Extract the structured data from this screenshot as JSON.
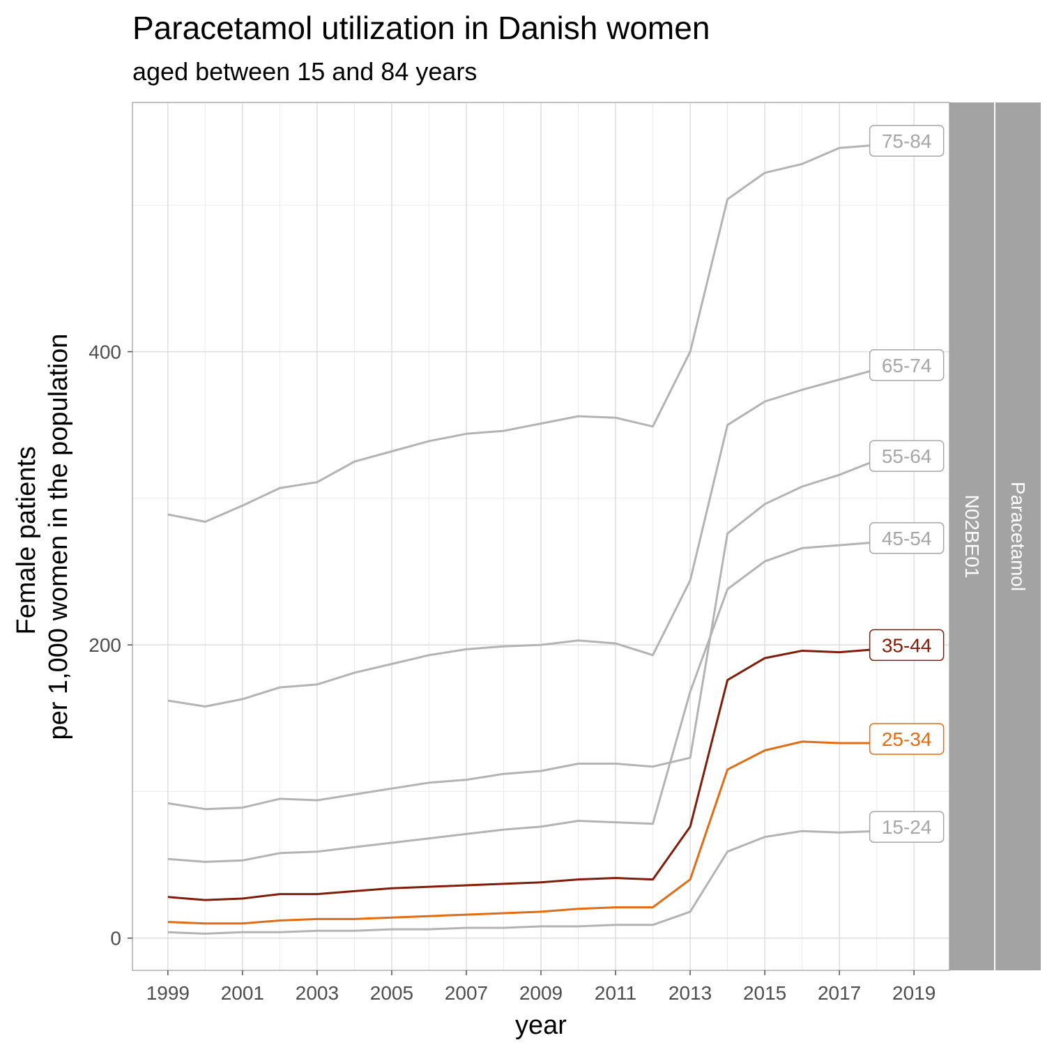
{
  "chart_data": {
    "type": "line",
    "title": "Paracetamol utilization in Danish women",
    "subtitle": "aged between 15 and 84 years",
    "xlabel": "year",
    "ylabel": [
      "Female patients",
      "per 1,000 women in the population"
    ],
    "xlim": [
      1998.05,
      2019.95
    ],
    "ylim": [
      -22,
      570
    ],
    "x_ticks": [
      1999,
      2001,
      2003,
      2005,
      2007,
      2009,
      2011,
      2013,
      2015,
      2017,
      2019
    ],
    "y_ticks": [
      0,
      200,
      400
    ],
    "grid": true,
    "strips": [
      "N02BE01",
      "Paracetamol"
    ],
    "x": [
      1999,
      2000,
      2001,
      2002,
      2003,
      2004,
      2005,
      2006,
      2007,
      2008,
      2009,
      2010,
      2011,
      2012,
      2013,
      2014,
      2015,
      2016,
      2017,
      2018
    ],
    "series": [
      {
        "name": "75-84",
        "color": "#b3b3b3",
        "values": [
          289,
          284,
          295,
          307,
          311,
          325,
          332,
          339,
          344,
          346,
          351,
          356,
          355,
          349,
          400,
          504,
          522,
          528,
          539,
          541
        ]
      },
      {
        "name": "65-74",
        "color": "#b3b3b3",
        "values": [
          162,
          158,
          163,
          171,
          173,
          181,
          187,
          193,
          197,
          199,
          200,
          203,
          201,
          193,
          244,
          350,
          366,
          374,
          381,
          388
        ]
      },
      {
        "name": "55-64",
        "color": "#b3b3b3",
        "values": [
          92,
          88,
          89,
          95,
          94,
          98,
          102,
          106,
          108,
          112,
          114,
          119,
          119,
          117,
          123,
          276,
          296,
          308,
          316,
          326
        ]
      },
      {
        "name": "45-54",
        "color": "#b3b3b3",
        "values": [
          54,
          52,
          53,
          58,
          59,
          62,
          65,
          68,
          71,
          74,
          76,
          80,
          79,
          78,
          168,
          238,
          257,
          266,
          268,
          270
        ]
      },
      {
        "name": "35-44",
        "color": "#7f1d08",
        "values": [
          28,
          26,
          27,
          30,
          30,
          32,
          34,
          35,
          36,
          37,
          38,
          40,
          41,
          40,
          76,
          176,
          191,
          196,
          195,
          197
        ]
      },
      {
        "name": "25-34",
        "color": "#e06d16",
        "values": [
          11,
          10,
          10,
          12,
          13,
          13,
          14,
          15,
          16,
          17,
          18,
          20,
          21,
          21,
          40,
          115,
          128,
          134,
          133,
          133
        ]
      },
      {
        "name": "15-24",
        "color": "#b3b3b3",
        "values": [
          4,
          3,
          4,
          4,
          5,
          5,
          6,
          6,
          7,
          7,
          8,
          8,
          9,
          9,
          18,
          59,
          69,
          73,
          72,
          73
        ]
      }
    ]
  }
}
